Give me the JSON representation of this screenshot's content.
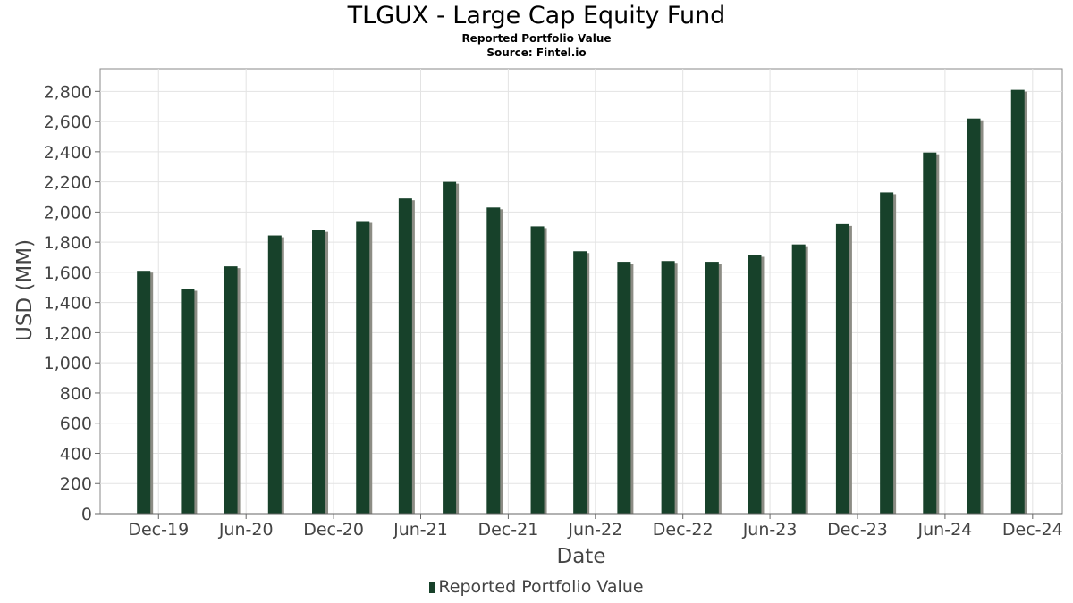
{
  "chart_data": {
    "type": "bar",
    "title": "TLGUX - Large Cap Equity Fund",
    "subtitles": [
      "Reported Portfolio Value",
      "Source: Fintel.io"
    ],
    "xlabel": "Date",
    "ylabel": "USD (MM)",
    "legend": {
      "position": "bottom-center",
      "entries": [
        "Reported Portfolio Value"
      ]
    },
    "grid": true,
    "ylim": [
      0,
      2950
    ],
    "yticks": [
      "0",
      "200",
      "400",
      "600",
      "800",
      "1,000",
      "1,200",
      "1,400",
      "1,600",
      "1,800",
      "2,000",
      "2,200",
      "2,400",
      "2,600",
      "2,800"
    ],
    "ytick_values": [
      0,
      200,
      400,
      600,
      800,
      1000,
      1200,
      1400,
      1600,
      1800,
      2000,
      2200,
      2400,
      2600,
      2800
    ],
    "xticks": [
      "Dec-19",
      "Jun-20",
      "Dec-20",
      "Jun-21",
      "Dec-21",
      "Jun-22",
      "Dec-22",
      "Jun-23",
      "Dec-23",
      "Jun-24",
      "Dec-24"
    ],
    "categories": [
      "2019-10-31",
      "2020-01-31",
      "2020-04-30",
      "2020-07-31",
      "2020-10-31",
      "2021-01-31",
      "2021-04-30",
      "2021-07-31",
      "2021-10-31",
      "2022-01-31",
      "2022-04-30",
      "2022-07-31",
      "2022-10-31",
      "2023-01-31",
      "2023-04-30",
      "2023-07-31",
      "2023-10-31",
      "2024-01-31",
      "2024-04-30",
      "2024-07-31",
      "2024-10-31"
    ],
    "series": [
      {
        "name": "Reported Portfolio Value",
        "color": "#17412a",
        "values": [
          1610,
          1490,
          1640,
          1845,
          1880,
          1940,
          2090,
          2200,
          2030,
          1905,
          1740,
          1670,
          1675,
          1670,
          1715,
          1785,
          1920,
          2130,
          2395,
          2620,
          2810
        ]
      }
    ]
  }
}
